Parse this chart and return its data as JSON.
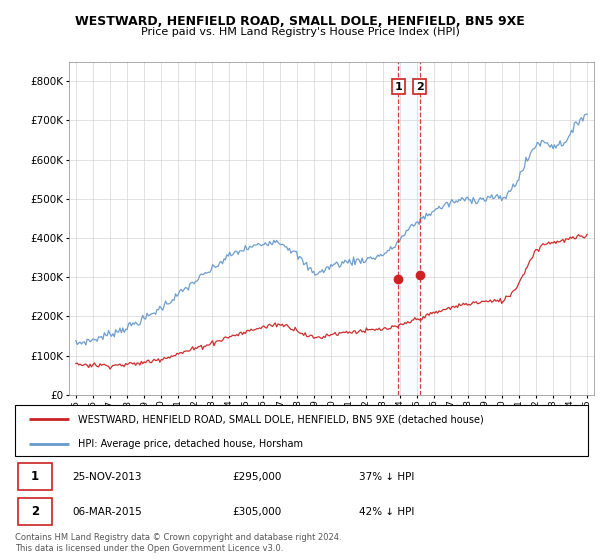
{
  "title": "WESTWARD, HENFIELD ROAD, SMALL DOLE, HENFIELD, BN5 9XE",
  "subtitle": "Price paid vs. HM Land Registry's House Price Index (HPI)",
  "ylim": [
    0,
    850000
  ],
  "yticks": [
    0,
    100000,
    200000,
    300000,
    400000,
    500000,
    600000,
    700000,
    800000
  ],
  "ytick_labels": [
    "£0",
    "£100K",
    "£200K",
    "£300K",
    "£400K",
    "£500K",
    "£600K",
    "£700K",
    "£800K"
  ],
  "hpi_color": "#6699cc",
  "property_color": "#cc2222",
  "dashed_color": "#cc2222",
  "shade_color": "#ddeeff",
  "legend_property": "WESTWARD, HENFIELD ROAD, SMALL DOLE, HENFIELD, BN5 9XE (detached house)",
  "legend_hpi": "HPI: Average price, detached house, Horsham",
  "transaction1_date": "25-NOV-2013",
  "transaction1_price": "£295,000",
  "transaction1_info": "37% ↓ HPI",
  "transaction2_date": "06-MAR-2015",
  "transaction2_price": "£305,000",
  "transaction2_info": "42% ↓ HPI",
  "copyright": "Contains HM Land Registry data © Crown copyright and database right 2024.\nThis data is licensed under the Open Government Licence v3.0.",
  "hpi_knots_x": [
    1995.0,
    1996.0,
    1997.0,
    1998.0,
    1999.0,
    2000.0,
    2001.0,
    2002.0,
    2003.0,
    2004.0,
    2005.0,
    2006.0,
    2006.5,
    2007.0,
    2007.5,
    2008.0,
    2008.5,
    2009.0,
    2009.5,
    2010.0,
    2010.5,
    2011.0,
    2011.5,
    2012.0,
    2012.5,
    2013.0,
    2013.5,
    2014.0,
    2014.5,
    2015.0,
    2015.5,
    2016.0,
    2016.5,
    2017.0,
    2017.5,
    2018.0,
    2018.5,
    2019.0,
    2019.5,
    2020.0,
    2020.5,
    2021.0,
    2021.5,
    2022.0,
    2022.5,
    2023.0,
    2023.5,
    2024.0,
    2024.5,
    2025.0
  ],
  "hpi_knots_y": [
    130000,
    140000,
    155000,
    172000,
    193000,
    222000,
    255000,
    290000,
    320000,
    355000,
    373000,
    385000,
    393000,
    390000,
    375000,
    355000,
    330000,
    310000,
    315000,
    330000,
    335000,
    340000,
    342000,
    345000,
    350000,
    358000,
    370000,
    395000,
    420000,
    440000,
    455000,
    470000,
    480000,
    490000,
    495000,
    500000,
    498000,
    500000,
    505000,
    498000,
    520000,
    555000,
    600000,
    640000,
    645000,
    635000,
    640000,
    660000,
    700000,
    720000
  ],
  "prop_knots_x": [
    1995.0,
    1996.0,
    1997.0,
    1998.0,
    1999.0,
    2000.0,
    2001.0,
    2002.0,
    2003.0,
    2004.0,
    2005.0,
    2005.5,
    2006.0,
    2006.5,
    2007.0,
    2007.5,
    2008.0,
    2008.5,
    2009.0,
    2009.5,
    2010.0,
    2010.5,
    2011.0,
    2011.5,
    2012.0,
    2012.5,
    2013.0,
    2013.5,
    2014.0,
    2014.5,
    2015.0,
    2015.5,
    2016.0,
    2016.5,
    2017.0,
    2017.5,
    2018.0,
    2018.5,
    2019.0,
    2019.5,
    2020.0,
    2020.5,
    2021.0,
    2021.5,
    2022.0,
    2022.5,
    2023.0,
    2023.5,
    2024.0,
    2024.5,
    2025.0
  ],
  "prop_knots_y": [
    78000,
    76000,
    75000,
    77000,
    82000,
    92000,
    104000,
    118000,
    132000,
    148000,
    160000,
    168000,
    172000,
    178000,
    180000,
    174000,
    165000,
    152000,
    145000,
    148000,
    155000,
    158000,
    160000,
    162000,
    163000,
    165000,
    167000,
    170000,
    175000,
    185000,
    193000,
    200000,
    208000,
    215000,
    222000,
    228000,
    232000,
    235000,
    238000,
    238000,
    240000,
    255000,
    285000,
    330000,
    370000,
    385000,
    390000,
    392000,
    398000,
    402000,
    405000
  ],
  "transaction1_x": 2013.92,
  "transaction1_y": 295000,
  "transaction2_x": 2015.17,
  "transaction2_y": 305000,
  "xlim_left": 1994.6,
  "xlim_right": 2025.4
}
